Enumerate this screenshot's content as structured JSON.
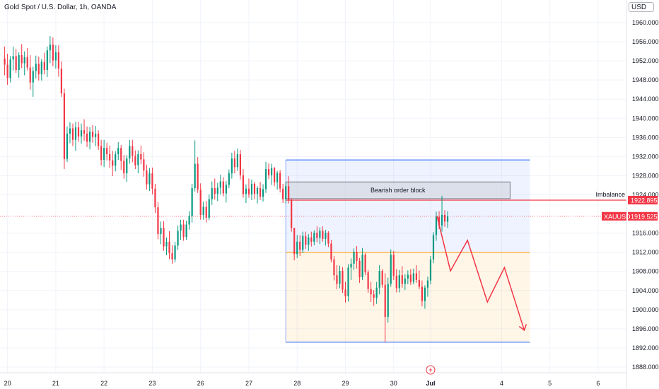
{
  "header": {
    "title": "Gold Spot / U.S. Dollar, 1h, OANDA",
    "currency": "USD"
  },
  "colors": {
    "up": "#089981",
    "down": "#f23645",
    "grid": "#f0f3fa",
    "zone_blue": "#2962ff",
    "zone_orange": "#ff9800",
    "projection": "#f23645"
  },
  "chart_data": {
    "type": "candlestick",
    "title": "Gold Spot / U.S. Dollar, 1h, OANDA",
    "y_ticks": [
      1960,
      1956,
      1952,
      1948,
      1944,
      1940,
      1936,
      1932,
      1928,
      1924,
      1916,
      1912,
      1908,
      1904,
      1900,
      1896,
      1892,
      1888
    ],
    "y_tick_labels": [
      "1960.000",
      "1956.000",
      "1952.000",
      "1948.000",
      "1944.000",
      "1940.000",
      "1936.000",
      "1932.000",
      "1928.000",
      "1924.000",
      "1916.000",
      "1912.000",
      "1908.000",
      "1904.000",
      "1900.000",
      "1896.000",
      "1892.000",
      "1888.000"
    ],
    "ylim": [
      1887,
      1964
    ],
    "x_ticks": [
      {
        "label": "20",
        "t": 2
      },
      {
        "label": "21",
        "t": 36
      },
      {
        "label": "22",
        "t": 70
      },
      {
        "label": "23",
        "t": 104
      },
      {
        "label": "26",
        "t": 138
      },
      {
        "label": "27",
        "t": 172
      },
      {
        "label": "28",
        "t": 206
      },
      {
        "label": "29",
        "t": 240
      },
      {
        "label": "30",
        "t": 274
      },
      {
        "label": "Jul",
        "t": 300
      },
      {
        "label": "4",
        "t": 350
      },
      {
        "label": "5",
        "t": 384
      },
      {
        "label": "6",
        "t": 418
      }
    ],
    "xlim": [
      -21,
      450
    ],
    "candles": [
      [
        1952.5,
        1955,
        1949,
        1951.2
      ],
      [
        1951.2,
        1953.5,
        1947,
        1948.4
      ],
      [
        1948.4,
        1953,
        1947.5,
        1952.3
      ],
      [
        1952.3,
        1955,
        1950,
        1953
      ],
      [
        1953,
        1954.5,
        1949.5,
        1950.1
      ],
      [
        1950.1,
        1953.8,
        1948.5,
        1953.2
      ],
      [
        1953.2,
        1955.5,
        1950.5,
        1951.5
      ],
      [
        1951.5,
        1954,
        1949,
        1952.8
      ],
      [
        1952.8,
        1954.7,
        1950,
        1950.6
      ],
      [
        1950.6,
        1953.2,
        1946,
        1947.5
      ],
      [
        1947.5,
        1950.8,
        1944.5,
        1949.9
      ],
      [
        1949.9,
        1953.1,
        1948.3,
        1951.4
      ],
      [
        1951.4,
        1952.9,
        1947.9,
        1949.2
      ],
      [
        1949.2,
        1952.4,
        1947.9,
        1951.8
      ],
      [
        1951.8,
        1953.7,
        1949.2,
        1950.1
      ],
      [
        1950.1,
        1955,
        1948.6,
        1954.2
      ],
      [
        1954.2,
        1957.2,
        1951.5,
        1955.4
      ],
      [
        1955.4,
        1956.9,
        1950.9,
        1952.1
      ],
      [
        1952.1,
        1955.3,
        1950.4,
        1953.8
      ],
      [
        1953.8,
        1955.3,
        1948.7,
        1950.4
      ],
      [
        1950.4,
        1951.9,
        1944.5,
        1945.2
      ],
      [
        1945.2,
        1946.2,
        1929.4,
        1931.5
      ],
      [
        1931.5,
        1938.3,
        1930.9,
        1936.8
      ],
      [
        1936.8,
        1939.2,
        1934.8,
        1937.9
      ],
      [
        1937.9,
        1938.9,
        1934.2,
        1935.5
      ],
      [
        1935.5,
        1939.3,
        1933.2,
        1938.1
      ],
      [
        1938.1,
        1939.2,
        1935.1,
        1936.2
      ],
      [
        1936.2,
        1938.9,
        1934.7,
        1937.5
      ],
      [
        1937.5,
        1939.8,
        1935.3,
        1936.8
      ],
      [
        1936.8,
        1938.3,
        1934,
        1935.1
      ],
      [
        1935.1,
        1938.2,
        1933.5,
        1937.2
      ],
      [
        1937.2,
        1938.6,
        1934.9,
        1936.1
      ],
      [
        1936.1,
        1938.4,
        1934.2,
        1936.8
      ],
      [
        1936.8,
        1937.5,
        1933.4,
        1934.2
      ],
      [
        1934.2,
        1935.5,
        1930.1,
        1931.3
      ],
      [
        1931.3,
        1935.5,
        1929.8,
        1933.8
      ],
      [
        1933.8,
        1934.9,
        1931.2,
        1932.5
      ],
      [
        1932.5,
        1934.3,
        1929.6,
        1931.2
      ],
      [
        1931.2,
        1933.2,
        1927.9,
        1930.1
      ],
      [
        1930.1,
        1933.1,
        1928.9,
        1932.5
      ],
      [
        1932.5,
        1935,
        1931.3,
        1933.8
      ],
      [
        1933.8,
        1934.4,
        1929.2,
        1931.1
      ],
      [
        1931.1,
        1932.3,
        1927.4,
        1928.5
      ],
      [
        1928.5,
        1932.3,
        1926.7,
        1931.6
      ],
      [
        1931.6,
        1935.5,
        1930.5,
        1934.2
      ],
      [
        1934.2,
        1935.5,
        1930.8,
        1932.1
      ],
      [
        1932.1,
        1933.3,
        1929.4,
        1930.2
      ],
      [
        1930.2,
        1933.3,
        1928.5,
        1932.5
      ],
      [
        1932.5,
        1934.3,
        1930.4,
        1931.4
      ],
      [
        1931.4,
        1932.9,
        1927.8,
        1929.1
      ],
      [
        1929.1,
        1930.3,
        1925.1,
        1926.2
      ],
      [
        1926.2,
        1929.6,
        1924.8,
        1928.5
      ],
      [
        1928.5,
        1929.7,
        1924.1,
        1925.3
      ],
      [
        1925.3,
        1926.3,
        1920.2,
        1921.4
      ],
      [
        1921.4,
        1922.5,
        1914.7,
        1915.8
      ],
      [
        1915.8,
        1918.4,
        1913.7,
        1917.1
      ],
      [
        1917.1,
        1918.5,
        1912.3,
        1913.2
      ],
      [
        1913.2,
        1915.1,
        1911.4,
        1914.2
      ],
      [
        1914.2,
        1916.4,
        1910.6,
        1911.8
      ],
      [
        1911.8,
        1913.5,
        1909.6,
        1910.5
      ],
      [
        1910.5,
        1914.2,
        1909.9,
        1913.4
      ],
      [
        1913.4,
        1917.6,
        1912.5,
        1916.5
      ],
      [
        1916.5,
        1918.8,
        1914.6,
        1917.8
      ],
      [
        1917.8,
        1918.8,
        1914.4,
        1915.2
      ],
      [
        1915.2,
        1918.6,
        1914.6,
        1917.8
      ],
      [
        1917.8,
        1920.6,
        1916.7,
        1919.6
      ],
      [
        1919.6,
        1926.3,
        1918.2,
        1925.4
      ],
      [
        1925.4,
        1935.4,
        1924.7,
        1930.5
      ],
      [
        1930.5,
        1931.9,
        1924.4,
        1925.1
      ],
      [
        1925.1,
        1926.4,
        1918.8,
        1919.8
      ],
      [
        1919.8,
        1922.6,
        1918.8,
        1921.5
      ],
      [
        1921.5,
        1922.7,
        1918.2,
        1919.2
      ],
      [
        1919.2,
        1924.1,
        1918.7,
        1923.1
      ],
      [
        1923.1,
        1926.8,
        1921.9,
        1925.4
      ],
      [
        1925.4,
        1927.4,
        1923,
        1924.2
      ],
      [
        1924.2,
        1926.5,
        1922.7,
        1925.5
      ],
      [
        1925.5,
        1928.2,
        1924.1,
        1926.8
      ],
      [
        1926.8,
        1927.7,
        1923.7,
        1924.3
      ],
      [
        1924.3,
        1926.9,
        1922.4,
        1926.1
      ],
      [
        1926.1,
        1929.3,
        1925.4,
        1928.5
      ],
      [
        1928.5,
        1932.8,
        1927.4,
        1931.6
      ],
      [
        1931.6,
        1933.2,
        1928.5,
        1929.8
      ],
      [
        1929.8,
        1933.7,
        1929,
        1932.5
      ],
      [
        1932.5,
        1933.4,
        1927.2,
        1928.1
      ],
      [
        1928.1,
        1929.4,
        1923.4,
        1924.2
      ],
      [
        1924.2,
        1926.2,
        1922.3,
        1925.3
      ],
      [
        1925.3,
        1927.4,
        1923.4,
        1924.1
      ],
      [
        1924.1,
        1927.2,
        1922.9,
        1926.3
      ],
      [
        1926.3,
        1926.7,
        1923.1,
        1924.2
      ],
      [
        1924.2,
        1925.8,
        1922.2,
        1925.4
      ],
      [
        1925.4,
        1926.7,
        1922.9,
        1923.6
      ],
      [
        1923.6,
        1926.2,
        1922.6,
        1925.2
      ],
      [
        1925.2,
        1930.9,
        1924.4,
        1929.4
      ],
      [
        1929.4,
        1930.6,
        1927.3,
        1928.1
      ],
      [
        1928.1,
        1930.5,
        1926.1,
        1929.6
      ],
      [
        1929.6,
        1929.8,
        1925.8,
        1926.6
      ],
      [
        1926.6,
        1929,
        1925.1,
        1928.6
      ],
      [
        1928.6,
        1929.2,
        1924.5,
        1925.3
      ],
      [
        1925.3,
        1926.3,
        1922.3,
        1923.1
      ],
      [
        1923.1,
        1926.6,
        1922.2,
        1925.8
      ],
      [
        1925.8,
        1927.9,
        1922.2,
        1922.8
      ],
      [
        1922.8,
        1923.3,
        1916.3,
        1917.1
      ],
      [
        1917.1,
        1917.1,
        1910.3,
        1911.6
      ],
      [
        1911.6,
        1915.6,
        1910.8,
        1914.2
      ],
      [
        1914.2,
        1915.6,
        1911.2,
        1912.5
      ],
      [
        1912.5,
        1916.3,
        1911.8,
        1915.4
      ],
      [
        1915.4,
        1916.3,
        1912.7,
        1913.6
      ],
      [
        1913.6,
        1915.8,
        1912.3,
        1915.1
      ],
      [
        1915.1,
        1916.3,
        1913.2,
        1914.2
      ],
      [
        1914.2,
        1916.6,
        1913.5,
        1916.1
      ],
      [
        1916.1,
        1917.4,
        1914.1,
        1915
      ],
      [
        1915,
        1917.2,
        1913.7,
        1916.5
      ],
      [
        1916.5,
        1917.4,
        1914.2,
        1914.8
      ],
      [
        1914.8,
        1916.7,
        1913.4,
        1916.1
      ],
      [
        1916.1,
        1916.4,
        1913.1,
        1913.8
      ],
      [
        1913.8,
        1914.6,
        1909.9,
        1910.5
      ],
      [
        1910.5,
        1911.2,
        1906.1,
        1907.2
      ],
      [
        1907.2,
        1909.3,
        1904.3,
        1905.4
      ],
      [
        1905.4,
        1909.2,
        1904.5,
        1908.1
      ],
      [
        1908.1,
        1908.9,
        1903.5,
        1904.2
      ],
      [
        1904.2,
        1905.8,
        1901.5,
        1902.8
      ],
      [
        1902.8,
        1909.5,
        1901.7,
        1908.8
      ],
      [
        1908.8,
        1910.7,
        1906.2,
        1909.6
      ],
      [
        1909.6,
        1912.8,
        1908.3,
        1912.1
      ],
      [
        1912.1,
        1913.3,
        1908.6,
        1910.2
      ],
      [
        1910.2,
        1910.8,
        1905.6,
        1906.8
      ],
      [
        1906.8,
        1912.9,
        1906.2,
        1911.5
      ],
      [
        1911.5,
        1911.8,
        1907.2,
        1907.8
      ],
      [
        1907.8,
        1908.3,
        1903.5,
        1904.3
      ],
      [
        1904.3,
        1905.8,
        1901.6,
        1903.2
      ],
      [
        1903.2,
        1904.1,
        1900.8,
        1902.5
      ],
      [
        1902.5,
        1905.8,
        1901.2,
        1904.6
      ],
      [
        1904.6,
        1909.3,
        1903.2,
        1908.1
      ],
      [
        1908.1,
        1908.5,
        1904.6,
        1905.2
      ],
      [
        1905.2,
        1907.6,
        1893.2,
        1898.5
      ],
      [
        1898.5,
        1906.7,
        1897.3,
        1905.4
      ],
      [
        1905.4,
        1912.6,
        1904.8,
        1911.5
      ],
      [
        1911.5,
        1912.3,
        1906.2,
        1907.1
      ],
      [
        1907.1,
        1908.5,
        1903.6,
        1904.5
      ],
      [
        1904.5,
        1908.3,
        1903.6,
        1907.2
      ],
      [
        1907.2,
        1909.1,
        1904.6,
        1905.4
      ],
      [
        1905.4,
        1907.4,
        1904.1,
        1906.5
      ],
      [
        1906.5,
        1908.2,
        1905.3,
        1907.3
      ],
      [
        1907.3,
        1908.5,
        1905.2,
        1905.8
      ],
      [
        1905.8,
        1908.6,
        1905.3,
        1907.6
      ],
      [
        1907.6,
        1909.3,
        1905.6,
        1906.2
      ],
      [
        1906.2,
        1908.2,
        1904.3,
        1904.8
      ],
      [
        1904.8,
        1906.1,
        1900.7,
        1901.8
      ],
      [
        1901.8,
        1905.1,
        1900.2,
        1904.6
      ],
      [
        1904.6,
        1906.9,
        1902.7,
        1906.1
      ],
      [
        1906.1,
        1911.2,
        1905.3,
        1910.5
      ],
      [
        1910.5,
        1916.2,
        1909.7,
        1915.6
      ],
      [
        1915.6,
        1920.5,
        1914.4,
        1919.4
      ],
      [
        1919.4,
        1920.6,
        1916.8,
        1917.6
      ],
      [
        1917.6,
        1923.8,
        1916.3,
        1919.8
      ],
      [
        1919.8,
        1920.8,
        1917.3,
        1918.4
      ],
      [
        1918.4,
        1920.6,
        1917.1,
        1919.525
      ]
    ],
    "projection": {
      "t": [
        304.5,
        314,
        326,
        340,
        352,
        366
      ],
      "price": [
        1919.6,
        1908.1,
        1914.5,
        1901.6,
        1908.8,
        1895.7
      ]
    },
    "zones": {
      "upper": {
        "t0": 198,
        "t1": 370,
        "p0": 1931.3,
        "p1": 1912
      },
      "lower": {
        "t0": 198,
        "t1": 370,
        "p0": 1912,
        "p1": 1893.2
      },
      "order_block": {
        "t0": 198,
        "t1": 356,
        "p0": 1926.7,
        "p1": 1923.2,
        "label": "Bearish order block"
      }
    },
    "imbalance": {
      "label": "Imbalance",
      "price": 1922.895,
      "t0": 198
    },
    "last_price": {
      "symbol": "XAUUSD",
      "value": 1919.525,
      "label": "1919.525"
    },
    "imbalance_price_label": "1922.895"
  }
}
